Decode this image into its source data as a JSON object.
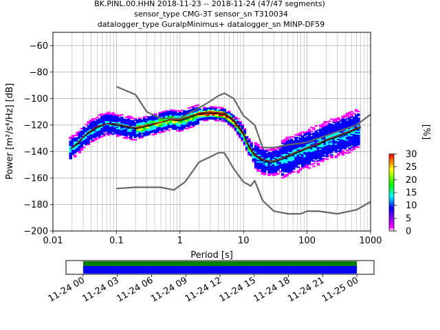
{
  "header": {
    "line1": "BK.PINL.00.HHN   2018-11-23 -- 2018-11-24  (47/47 segments)",
    "line2": "sensor_type CMG-3T sensor_sn T310034",
    "line3": "datalogger_type GuralpMinimus+ datalogger_sn MINP-DF59"
  },
  "chart_data": [
    {
      "type": "heatmap",
      "title": "BK.PINL.00.HHN   2018-11-23 -- 2018-11-24  (47/47 segments)",
      "xlabel": "Period [s]",
      "ylabel": "Power [m²/s⁴/Hz] [dB]",
      "x_scale": "log",
      "xlim": [
        0.01,
        1000
      ],
      "ylim": [
        -200,
        -50
      ],
      "grid": true,
      "x_ticks": [
        0.01,
        0.1,
        1,
        10,
        100,
        1000
      ],
      "x_tick_labels": [
        "0.01",
        "0.1",
        "1",
        "10",
        "100",
        "1000"
      ],
      "y_ticks": [
        -200,
        -180,
        -160,
        -140,
        -120,
        -100,
        -80,
        -60
      ],
      "y_tick_labels": [
        "−200",
        "−180",
        "−160",
        "−140",
        "−120",
        "−100",
        "−80",
        "−60"
      ],
      "colorbar": {
        "label": "[%]",
        "range": [
          0,
          30
        ],
        "ticks": [
          0,
          5,
          10,
          15,
          20,
          25,
          30
        ],
        "colors": [
          "#ffffff",
          "#ff00ff",
          "#0000ff",
          "#00ffff",
          "#00ff00",
          "#ffff00",
          "#ff0000"
        ]
      },
      "series": [
        {
          "name": "",
          "style": "mode",
          "color": "#000000",
          "x": [
            0.019,
            0.025,
            0.03,
            0.04,
            0.05,
            0.07,
            0.1,
            0.15,
            0.2,
            0.3,
            0.5,
            0.7,
            1,
            1.5,
            2,
            3,
            5,
            7,
            10,
            12,
            15,
            20,
            25,
            30,
            40,
            50,
            70,
            100,
            150,
            200,
            300,
            500,
            700
          ],
          "y": [
            -138,
            -134,
            -129,
            -125,
            -122,
            -119,
            -120,
            -122,
            -123,
            -121,
            -118,
            -116,
            -117,
            -114,
            -112,
            -111,
            -112,
            -117,
            -127,
            -136,
            -143,
            -147,
            -148,
            -148,
            -146,
            -144,
            -141,
            -138,
            -135,
            -132,
            -129,
            -125,
            -122
          ]
        },
        {
          "name": "",
          "style": "mean",
          "color": "#8b0000",
          "x": [
            0.019,
            0.025,
            0.03,
            0.04,
            0.05,
            0.07,
            0.1,
            0.15,
            0.2,
            0.3,
            0.5,
            0.7,
            1,
            1.5,
            2,
            3,
            5,
            7,
            10,
            12,
            15,
            20,
            25,
            30,
            40,
            50,
            70,
            100,
            150,
            200,
            300,
            500,
            700
          ],
          "y": [
            -138,
            -133,
            -129,
            -124,
            -121,
            -119,
            -119,
            -121,
            -122,
            -120,
            -118,
            -116,
            -116,
            -113,
            -111,
            -110,
            -111,
            -116,
            -126,
            -135,
            -142,
            -146,
            -147,
            -147,
            -145,
            -143,
            -140,
            -137,
            -134,
            -131,
            -128,
            -124,
            -121
          ]
        },
        {
          "name": "",
          "style": "noise_model_high",
          "color": "#666666",
          "x": [
            0.1,
            0.2,
            0.3,
            0.5,
            1,
            2,
            3,
            4,
            5,
            7,
            10,
            15,
            20,
            30,
            50,
            100,
            200,
            300,
            600,
            1000
          ],
          "y": [
            -91,
            -97,
            -110,
            -115,
            -115,
            -107,
            -102,
            -98,
            -96,
            -100,
            -113,
            -120,
            -137,
            -137,
            -135,
            -133,
            -128,
            -125,
            -120,
            -112
          ]
        },
        {
          "name": "",
          "style": "noise_model_low",
          "color": "#666666",
          "x": [
            0.1,
            0.2,
            0.5,
            0.8,
            1.2,
            2,
            3,
            4,
            5,
            7,
            10,
            13,
            15,
            20,
            30,
            50,
            80,
            100,
            150,
            300,
            600,
            1000
          ],
          "y": [
            -168,
            -167,
            -167,
            -169,
            -163,
            -148,
            -144,
            -141,
            -141,
            -153,
            -163,
            -166,
            -162,
            -177,
            -185,
            -187,
            -187,
            -185,
            -185,
            -187,
            -184,
            -178
          ]
        }
      ]
    },
    {
      "type": "timeline",
      "x_tick_labels": [
        "11-24 00",
        "11-24 03",
        "11-24 06",
        "11-24 09",
        "11-24 12",
        "11-24 15",
        "11-24 18",
        "11-24 21",
        "11-25 00"
      ],
      "xlim_hours": [
        -1.5,
        25.5
      ],
      "segments": [
        {
          "name": "",
          "start_hour": 0,
          "end_hour": 24,
          "color": "#008000"
        },
        {
          "name": "",
          "start_hour": 0,
          "end_hour": 24,
          "color": "#0000ff"
        }
      ]
    }
  ]
}
